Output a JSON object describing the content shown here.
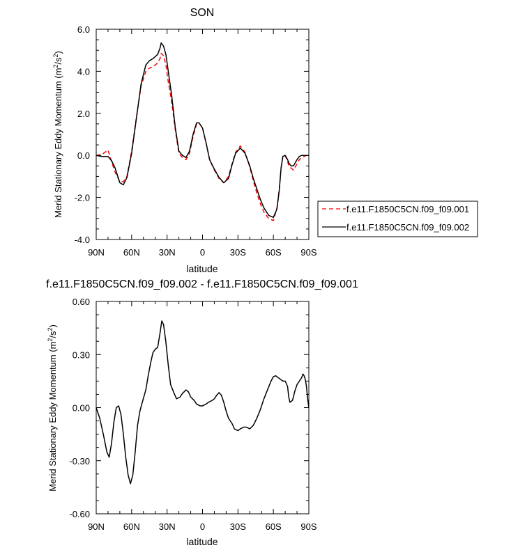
{
  "chart_data": [
    {
      "type": "line",
      "title": "SON",
      "xlabel": "latitude",
      "ylabel_main": "Merid Stationary Eddy Momentum (m",
      "ylabel_sup": "2",
      "ylabel_mid": "/s",
      "ylabel_sup2": "2",
      "ylabel_end": ")",
      "xlim": [
        90,
        -90
      ],
      "ylim": [
        -4.0,
        6.0
      ],
      "xticks": [
        90,
        60,
        30,
        0,
        -30,
        -60,
        -90
      ],
      "xtick_labels": [
        "90N",
        "60N",
        "30N",
        "0",
        "30S",
        "60S",
        "90S"
      ],
      "yticks": [
        -4.0,
        -2.0,
        0.0,
        2.0,
        4.0,
        6.0
      ],
      "ytick_labels": [
        "-4.0",
        "-2.0",
        "0.0",
        "2.0",
        "4.0",
        "6.0"
      ],
      "legend_position": "outside-right",
      "series": [
        {
          "name": "f.e11.F1850C5CN.f09_f09.001",
          "color": "#ff0000",
          "dash": "dashed",
          "x": [
            90,
            85,
            80,
            77,
            74,
            70,
            67,
            64,
            60,
            56,
            52,
            48,
            45,
            42,
            40,
            38,
            36,
            35,
            33,
            31,
            29,
            26,
            23,
            20,
            17,
            14,
            11,
            8,
            5,
            3,
            0,
            -3,
            -6,
            -10,
            -14,
            -18,
            -22,
            -25,
            -28,
            -32,
            -36,
            -40,
            -43,
            -46,
            -49,
            -52,
            -56,
            -60,
            -63,
            -65,
            -66.5,
            -68,
            -70,
            -72,
            -73.5,
            -75,
            -77,
            -79,
            -80,
            -82,
            -84,
            -86,
            -88,
            -90
          ],
          "y": [
            0.0,
            0.05,
            0.25,
            -0.3,
            -0.8,
            -1.25,
            -1.25,
            -1.0,
            0.2,
            1.8,
            3.3,
            4.0,
            4.15,
            4.2,
            4.3,
            4.4,
            4.6,
            4.85,
            4.75,
            4.3,
            3.5,
            2.5,
            1.2,
            0.1,
            -0.1,
            -0.2,
            0.1,
            0.9,
            1.5,
            1.55,
            1.3,
            0.6,
            -0.2,
            -0.7,
            -1.1,
            -1.3,
            -1.0,
            -0.4,
            0.15,
            0.45,
            0.15,
            -0.55,
            -1.2,
            -1.8,
            -2.3,
            -2.7,
            -3.0,
            -3.1,
            -2.5,
            -1.6,
            -0.6,
            -0.05,
            0.0,
            -0.3,
            -0.55,
            -0.6,
            -0.7,
            -0.5,
            -0.4,
            -0.2,
            -0.1,
            -0.05,
            0.0,
            0.0
          ]
        },
        {
          "name": "f.e11.F1850C5CN.f09_f09.002",
          "color": "#000000",
          "dash": "solid",
          "x": [
            90,
            85,
            80,
            77,
            74,
            70,
            67,
            64,
            60,
            56,
            52,
            48,
            45,
            42,
            40,
            38,
            36,
            35,
            33,
            31,
            29,
            26,
            23,
            20,
            17,
            14,
            11,
            8,
            5,
            3,
            0,
            -3,
            -6,
            -10,
            -14,
            -18,
            -22,
            -25,
            -28,
            -32,
            -36,
            -40,
            -43,
            -46,
            -49,
            -52,
            -56,
            -60,
            -63,
            -65,
            -66.5,
            -68,
            -70,
            -72,
            -73.5,
            -75,
            -77,
            -79,
            -80,
            -82,
            -84,
            -86,
            -88,
            -90
          ],
          "y": [
            0.0,
            -0.05,
            -0.05,
            -0.25,
            -0.6,
            -1.3,
            -1.4,
            -1.05,
            0.1,
            1.75,
            3.4,
            4.3,
            4.5,
            4.6,
            4.7,
            4.8,
            5.1,
            5.35,
            5.2,
            4.8,
            4.0,
            2.8,
            1.3,
            0.2,
            0.0,
            -0.1,
            0.2,
            1.0,
            1.55,
            1.55,
            1.3,
            0.6,
            -0.2,
            -0.65,
            -1.05,
            -1.3,
            -1.1,
            -0.45,
            0.1,
            0.35,
            0.1,
            -0.5,
            -1.1,
            -1.6,
            -2.1,
            -2.5,
            -2.85,
            -2.95,
            -2.55,
            -1.65,
            -0.6,
            -0.05,
            0.0,
            -0.2,
            -0.4,
            -0.5,
            -0.5,
            -0.3,
            -0.2,
            -0.05,
            0.0,
            0.0,
            0.0,
            0.0
          ]
        }
      ]
    },
    {
      "type": "line",
      "title": "f.e11.F1850C5CN.f09_f09.002 - f.e11.F1850C5CN.f09_f09.001",
      "xlabel": "latitude",
      "ylabel_main": "Merid Stationary Eddy Momentum (m",
      "ylabel_sup": "2",
      "ylabel_mid": "/s",
      "ylabel_sup2": "2",
      "ylabel_end": ")",
      "xlim": [
        90,
        -90
      ],
      "ylim": [
        -0.6,
        0.6
      ],
      "xticks": [
        90,
        60,
        30,
        0,
        -30,
        -60,
        -90
      ],
      "xtick_labels": [
        "90N",
        "60N",
        "30N",
        "0",
        "30S",
        "60S",
        "90S"
      ],
      "yticks": [
        -0.6,
        -0.3,
        0.0,
        0.3,
        0.6
      ],
      "ytick_labels": [
        "-0.60",
        "-0.30",
        "0.00",
        "0.30",
        "0.60"
      ],
      "series": [
        {
          "color": "#000000",
          "dash": "solid",
          "x": [
            90,
            87,
            84,
            81,
            79,
            77,
            75,
            73,
            71,
            69,
            67,
            65,
            63,
            61,
            59,
            57,
            55,
            53,
            51,
            48,
            46,
            44,
            42,
            40,
            38,
            36,
            34.5,
            33,
            31,
            29,
            27,
            24,
            22,
            19,
            17,
            14,
            12,
            10,
            7,
            5,
            2,
            0,
            -3,
            -5,
            -8,
            -10,
            -12,
            -14,
            -16,
            -18,
            -20,
            -22,
            -25,
            -27,
            -30,
            -32,
            -35,
            -37,
            -40,
            -43,
            -46,
            -49,
            -52,
            -55,
            -58,
            -60,
            -62,
            -64,
            -66,
            -68,
            -70,
            -72,
            -73,
            -74,
            -76,
            -77,
            -78,
            -80,
            -82,
            -84,
            -85,
            -86,
            -87,
            -88,
            -89,
            -90
          ],
          "y": [
            0.0,
            -0.06,
            -0.15,
            -0.25,
            -0.28,
            -0.2,
            -0.08,
            0.0,
            0.01,
            -0.04,
            -0.15,
            -0.28,
            -0.38,
            -0.43,
            -0.38,
            -0.25,
            -0.1,
            -0.02,
            0.03,
            0.1,
            0.18,
            0.25,
            0.31,
            0.33,
            0.34,
            0.42,
            0.49,
            0.47,
            0.37,
            0.24,
            0.13,
            0.08,
            0.05,
            0.06,
            0.08,
            0.1,
            0.09,
            0.06,
            0.04,
            0.02,
            0.01,
            0.01,
            0.02,
            0.03,
            0.04,
            0.05,
            0.07,
            0.085,
            0.07,
            0.03,
            -0.02,
            -0.06,
            -0.09,
            -0.12,
            -0.13,
            -0.12,
            -0.11,
            -0.11,
            -0.12,
            -0.1,
            -0.06,
            -0.01,
            0.05,
            0.1,
            0.15,
            0.175,
            0.18,
            0.17,
            0.16,
            0.15,
            0.15,
            0.12,
            0.06,
            0.03,
            0.04,
            0.06,
            0.09,
            0.13,
            0.15,
            0.17,
            0.19,
            0.18,
            0.16,
            0.12,
            0.05,
            0.0
          ]
        }
      ]
    }
  ]
}
